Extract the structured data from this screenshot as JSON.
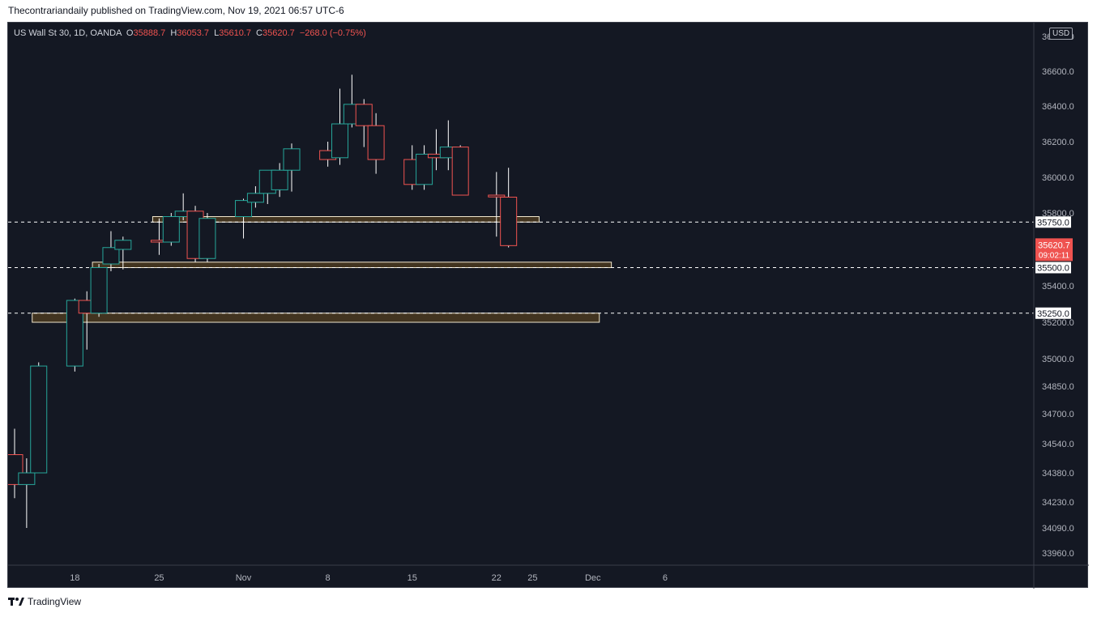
{
  "header": {
    "text": "Thecontrariandaily published on TradingView.com, Nov 19, 2021 06:57 UTC-6"
  },
  "legend": {
    "symbol": "US Wall St 30, 1D, OANDA",
    "o_label": "O",
    "o_value": "35888.7",
    "h_label": "H",
    "h_value": "36053.7",
    "l_label": "L",
    "l_value": "35610.7",
    "c_label": "C",
    "c_value": "35620.7",
    "change": "−268.0 (−0.75%)"
  },
  "currency": "USD",
  "footer": {
    "brand": "TradingView"
  },
  "colors": {
    "bg": "#141823",
    "up": "#26a69a",
    "down": "#ef5350",
    "zone_fill": "#4a3a20",
    "zone_border": "#f0e6cc",
    "axis_text": "#b2b5be"
  },
  "chart_data": {
    "type": "candlestick",
    "y_ticks": [
      "36600.0",
      "36400.0",
      "36200.0",
      "36000.0",
      "35800.0",
      "35400.0",
      "35200.0",
      "35000.0",
      "34850.0",
      "34700.0",
      "34540.0",
      "34380.0",
      "34230.0",
      "34090.0",
      "33960.0"
    ],
    "x_ticks": [
      {
        "label": "18",
        "day": 18
      },
      {
        "label": "25",
        "day": 25
      },
      {
        "label": "Nov",
        "day": 32
      },
      {
        "label": "8",
        "day": 39
      },
      {
        "label": "15",
        "day": 46
      },
      {
        "label": "22",
        "day": 53
      },
      {
        "label": "25",
        "day": 56
      },
      {
        "label": "Dec",
        "day": 61
      },
      {
        "label": "6",
        "day": 67
      }
    ],
    "candles": [
      {
        "day": 13,
        "o": 34480,
        "h": 34620,
        "l": 34250,
        "c": 34320
      },
      {
        "day": 14,
        "o": 34320,
        "h": 34460,
        "l": 34090,
        "c": 34380
      },
      {
        "day": 15,
        "o": 34380,
        "h": 34980,
        "l": 34380,
        "c": 34960
      },
      {
        "day": 18,
        "o": 34960,
        "h": 35330,
        "l": 34930,
        "c": 35320
      },
      {
        "day": 19,
        "o": 35320,
        "h": 35370,
        "l": 35050,
        "c": 35250
      },
      {
        "day": 20,
        "o": 35250,
        "h": 35520,
        "l": 35230,
        "c": 35500
      },
      {
        "day": 21,
        "o": 35520,
        "h": 35700,
        "l": 35480,
        "c": 35610
      },
      {
        "day": 22,
        "o": 35600,
        "h": 35670,
        "l": 35490,
        "c": 35650
      },
      {
        "day": 25,
        "o": 35650,
        "h": 35770,
        "l": 35570,
        "c": 35640
      },
      {
        "day": 26,
        "o": 35640,
        "h": 35800,
        "l": 35620,
        "c": 35780
      },
      {
        "day": 27,
        "o": 35780,
        "h": 35910,
        "l": 35760,
        "c": 35810
      },
      {
        "day": 28,
        "o": 35810,
        "h": 35840,
        "l": 35530,
        "c": 35550
      },
      {
        "day": 29,
        "o": 35550,
        "h": 35800,
        "l": 35530,
        "c": 35770
      },
      {
        "day": 32,
        "o": 35780,
        "h": 35880,
        "l": 35660,
        "c": 35870
      },
      {
        "day": 33,
        "o": 35860,
        "h": 35950,
        "l": 35830,
        "c": 35910
      },
      {
        "day": 34,
        "o": 35910,
        "h": 36020,
        "l": 35850,
        "c": 36040
      },
      {
        "day": 35,
        "o": 35930,
        "h": 36080,
        "l": 35890,
        "c": 36040
      },
      {
        "day": 36,
        "o": 36040,
        "h": 36190,
        "l": 35920,
        "c": 36160
      },
      {
        "day": 39,
        "o": 36150,
        "h": 36200,
        "l": 36060,
        "c": 36100
      },
      {
        "day": 40,
        "o": 36110,
        "h": 36500,
        "l": 36070,
        "c": 36300
      },
      {
        "day": 41,
        "o": 36300,
        "h": 36580,
        "l": 36280,
        "c": 36410
      },
      {
        "day": 42,
        "o": 36410,
        "h": 36440,
        "l": 36170,
        "c": 36290
      },
      {
        "day": 43,
        "o": 36290,
        "h": 36360,
        "l": 36020,
        "c": 36100
      },
      {
        "day": 46,
        "o": 36100,
        "h": 36180,
        "l": 35930,
        "c": 35960
      },
      {
        "day": 47,
        "o": 35960,
        "h": 36180,
        "l": 35930,
        "c": 36130
      },
      {
        "day": 48,
        "o": 36130,
        "h": 36270,
        "l": 36040,
        "c": 36110
      },
      {
        "day": 49,
        "o": 36110,
        "h": 36320,
        "l": 36040,
        "c": 36170
      },
      {
        "day": 50,
        "o": 36170,
        "h": 36180,
        "l": 35900,
        "c": 35900
      },
      {
        "day": 53,
        "o": 35900,
        "h": 36030,
        "l": 35670,
        "c": 35890
      },
      {
        "day": 54,
        "o": 35888.7,
        "h": 36053.7,
        "l": 35610.7,
        "c": 35620.7
      }
    ],
    "zones": [
      {
        "y_low": 35750,
        "y_high": 35780,
        "x_start_day": 25,
        "x_end_day": 56
      },
      {
        "y_low": 35500,
        "y_high": 35530,
        "x_start_day": 20,
        "x_end_day": 62
      },
      {
        "y_low": 35200,
        "y_high": 35250,
        "x_start_day": 15,
        "x_end_day": 61
      }
    ],
    "levels": [
      {
        "label": "35750.0",
        "value": 35750
      },
      {
        "label": "35500.0",
        "value": 35500
      },
      {
        "label": "35250.0",
        "value": 35250
      }
    ],
    "last_price": {
      "value": 35620.7,
      "label": "35620.7",
      "countdown": "09:02:11"
    }
  }
}
